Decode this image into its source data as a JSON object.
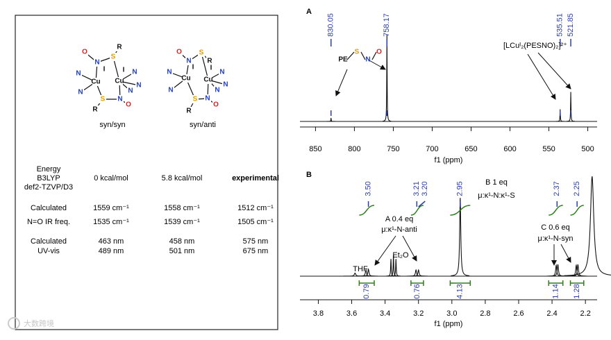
{
  "left_panel": {
    "structures": [
      {
        "caption": "syn/syn",
        "atoms": [
          "O",
          "N",
          "S",
          "R",
          "N",
          "N",
          "Cu",
          "I",
          "Cu",
          "I",
          "N",
          "N",
          "N",
          "S",
          "N",
          "O",
          "R"
        ]
      },
      {
        "caption": "syn/anti",
        "atoms": [
          "O",
          "N",
          "S",
          "R",
          "N",
          "N",
          "Cu",
          "I",
          "Cu",
          "I",
          "N",
          "N",
          "N",
          "S",
          "N",
          "O",
          "R"
        ]
      }
    ],
    "table": {
      "rows": [
        {
          "label": [
            "Energy",
            "B3LYP",
            "def2-TZVP/D3"
          ],
          "cells": [
            [
              "0 kcal/mol"
            ],
            [
              "5.8 kcal/mol"
            ],
            [
              "experimental"
            ]
          ]
        },
        {
          "label": [
            "Calculated",
            "N=O IR freq."
          ],
          "cells": [
            [
              "1559 cm⁻¹",
              "1535 cm⁻¹"
            ],
            [
              "1558 cm⁻¹",
              "1539 cm⁻¹"
            ],
            [
              "1512 cm⁻¹",
              "1505 cm⁻¹"
            ]
          ]
        },
        {
          "label": [
            "Calculated",
            "UV-vis"
          ],
          "cells": [
            [
              "463 nm",
              "489 nm"
            ],
            [
              "458 nm",
              "501 nm"
            ],
            [
              "575 nm",
              "675 nm"
            ]
          ]
        }
      ]
    }
  },
  "spectra": [
    {
      "panel": "A",
      "x_label": "f1 (ppm)",
      "xlim": [
        870,
        488
      ],
      "xticks": [
        850,
        800,
        750,
        700,
        650,
        600,
        550,
        500
      ],
      "peak_labels": [
        830.05,
        758.17,
        535.51,
        521.85
      ],
      "peaks": {
        "ppm": [
          830.05,
          758.17,
          535.51,
          521.85
        ],
        "height": [
          0.04,
          1.0,
          0.14,
          0.34
        ],
        "width": [
          0.3,
          0.3,
          0.3,
          0.3
        ]
      },
      "fragment": {
        "atoms": [
          "PE",
          "S",
          "N",
          "O"
        ]
      },
      "annotations": [
        "[LCuᴵ₂(PESNO)₂]²⁺"
      ],
      "integrals": []
    },
    {
      "panel": "B",
      "x_label": "f1 (ppm)",
      "xlim": [
        3.91,
        2.13
      ],
      "xticks": [
        3.8,
        3.6,
        3.4,
        {
          "value": 3.0,
          "label": "3.0"
        },
        3.2,
        2.8,
        2.6,
        2.4,
        2.2
      ],
      "peak_labels": [
        {
          "value": 3.5,
          "label": "3.50"
        },
        3.21,
        {
          "value": 3.2,
          "label": "3.20"
        },
        2.95,
        2.37,
        2.25
      ],
      "peaks": {
        "ppm": [
          3.58,
          3.515,
          3.5,
          3.365,
          3.35,
          3.335,
          3.215,
          3.2,
          2.95,
          2.375,
          2.365,
          2.255,
          2.245,
          2.16
        ],
        "height": [
          0.04,
          0.08,
          0.09,
          0.22,
          0.27,
          0.22,
          0.08,
          0.08,
          1.0,
          0.14,
          0.15,
          0.14,
          0.15,
          1.27
        ],
        "width": [
          0.005,
          0.004,
          0.004,
          0.002,
          0.002,
          0.002,
          0.004,
          0.004,
          0.004,
          0.004,
          0.004,
          0.004,
          0.004,
          0.012
        ]
      },
      "annotations": [
        "THF",
        "Et₂O",
        "A 0.4 eq",
        "μ:κ¹-N-anti",
        "B 1 eq",
        "μ:κ¹-N:κ¹-S",
        "C 0.6 eq",
        "μ:κ¹-N-syn"
      ],
      "integrals": [
        {
          "range": [
            3.555,
            3.465
          ],
          "value": 0.79
        },
        {
          "range": [
            3.245,
            3.17
          ],
          "value": 0.76
        },
        {
          "range": [
            3.01,
            2.89
          ],
          "value": 4.13
        },
        {
          "range": [
            2.42,
            2.335
          ],
          "value": 1.14
        },
        {
          "range": [
            2.29,
            2.21
          ],
          "value": 1.28
        }
      ]
    }
  ],
  "watermark": "大数跨境"
}
